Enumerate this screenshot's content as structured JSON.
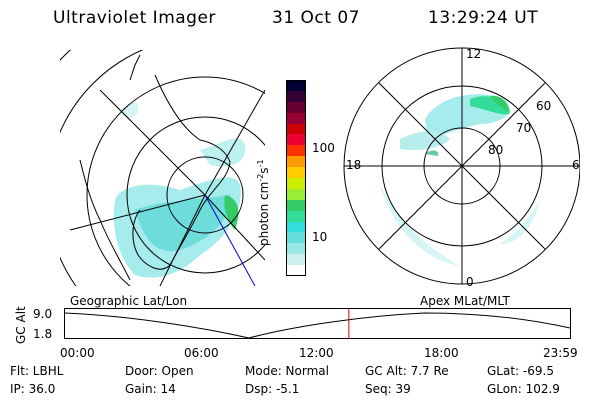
{
  "header": {
    "title": "Ultraviolet Imager",
    "date": "31 Oct 07",
    "time": "13:29:24 UT"
  },
  "colorbar": {
    "label": "photon cm",
    "label_sup1": "-2",
    "label_mid": "s",
    "label_sup2": "-1",
    "ticks": [
      "100",
      "10"
    ],
    "colors": [
      "#000033",
      "#330033",
      "#660033",
      "#990033",
      "#cc0000",
      "#ee0033",
      "#ff3300",
      "#ff9900",
      "#ffcc00",
      "#ccee00",
      "#99ee33",
      "#33cc66",
      "#33dd99",
      "#33dddd",
      "#66dddd",
      "#99e6e6",
      "#ccf0f0",
      "#ffffff"
    ]
  },
  "geo_map": {
    "label": "Geographic Lat/Lon"
  },
  "polar_map": {
    "label": "Apex  MLat/MLT",
    "mlt_labels": {
      "top": "12",
      "left": "18",
      "right": "6",
      "bottom": "0"
    },
    "lat_labels": [
      "60",
      "70",
      "80"
    ]
  },
  "timeline": {
    "axis_label": "GC Alt",
    "y_ticks": [
      "9.0",
      "1.8"
    ],
    "x_ticks": [
      "00:00",
      "06:00",
      "12:00",
      "18:00",
      "23:59"
    ],
    "current_time_fraction": 0.5621
  },
  "info": {
    "flt": "Flt: LBHL",
    "ip": "IP: 36.0",
    "door": "Door: Open",
    "gain": "Gain: 14",
    "mode": "Mode: Normal",
    "dsp": "Dsp:    -5.1",
    "gc_alt": "GC Alt: 7.7 Re",
    "seq": "Seq: 39",
    "glat": "GLat: -69.5",
    "glon": "GLon: 102.9"
  }
}
